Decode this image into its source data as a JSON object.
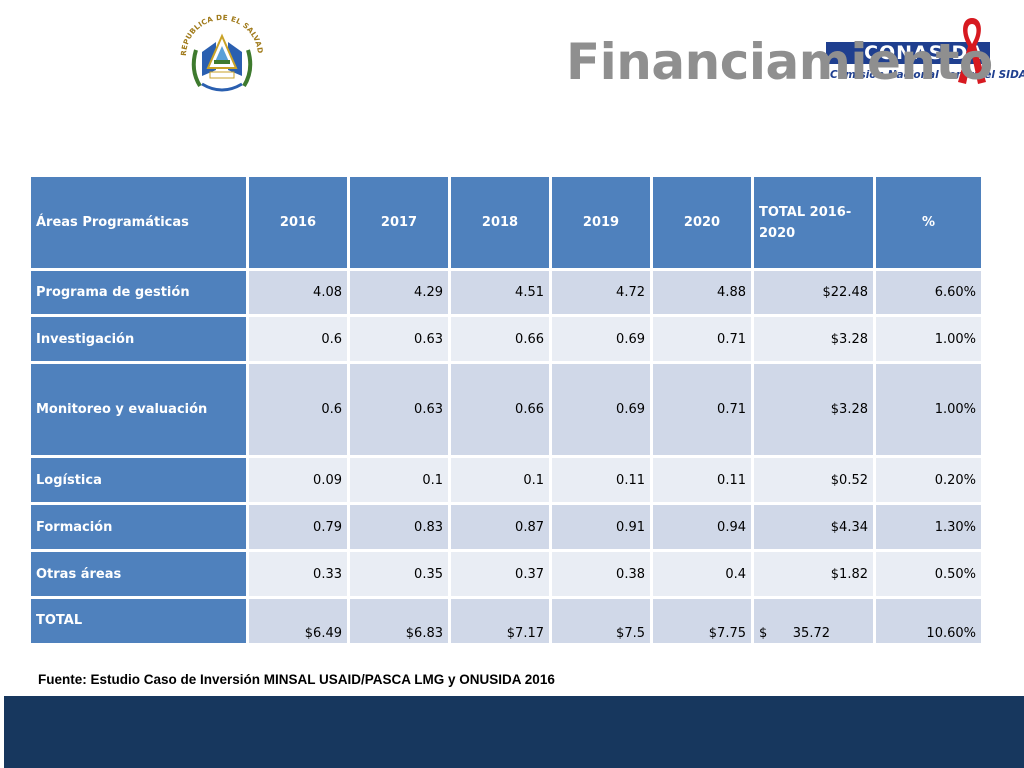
{
  "header": {
    "title": "Financiamiento",
    "seal_text": "REPUBLICA DE EL SALVADOR EN LA AMERICA CENTRAL",
    "logo_band": "CONASIDA",
    "logo_sub": "Comisión Nacional contra el SIDA"
  },
  "colors": {
    "header_blue": "#4f81bd",
    "row_light": "#e9edf4",
    "row_dark": "#d0d8e8",
    "footer_navy": "#17375e",
    "title_gray": "#8f8f8f"
  },
  "table": {
    "columns": [
      "Áreas Programáticas",
      "2016",
      "2017",
      "2018",
      "2019",
      "2020",
      "TOTAL 2016-2020",
      "%"
    ],
    "rows": [
      {
        "label": "Programa de gestión",
        "values": [
          "4.08",
          "4.29",
          "4.51",
          "4.72",
          "4.88",
          "$22.48",
          "6.60%"
        ]
      },
      {
        "label": "Investigación",
        "values": [
          "0.6",
          "0.63",
          "0.66",
          "0.69",
          "0.71",
          "$3.28",
          "1.00%"
        ]
      },
      {
        "label": "Monitoreo  y evaluación",
        "values": [
          "0.6",
          "0.63",
          "0.66",
          "0.69",
          "0.71",
          "$3.28",
          "1.00%"
        ]
      },
      {
        "label": "Logística",
        "values": [
          "0.09",
          "0.1",
          "0.1",
          "0.11",
          "0.11",
          "$0.52",
          "0.20%"
        ]
      },
      {
        "label": "Formación",
        "values": [
          "0.79",
          "0.83",
          "0.87",
          "0.91",
          "0.94",
          "$4.34",
          "1.30%"
        ]
      },
      {
        "label": "Otras áreas",
        "values": [
          "0.33",
          "0.35",
          "0.37",
          "0.38",
          "0.4",
          "$1.82",
          "0.50%"
        ]
      }
    ],
    "total_row": {
      "label": "TOTAL",
      "values": [
        "$6.49",
        "$6.83",
        "$7.17",
        "$7.5",
        "$7.75"
      ],
      "grand_total_symbol": "$",
      "grand_total_value": "35.72",
      "percent": "10.60%"
    }
  },
  "source": "Fuente: Estudio Caso de Inversión MINSAL USAID/PASCA LMG y ONUSIDA  2016"
}
